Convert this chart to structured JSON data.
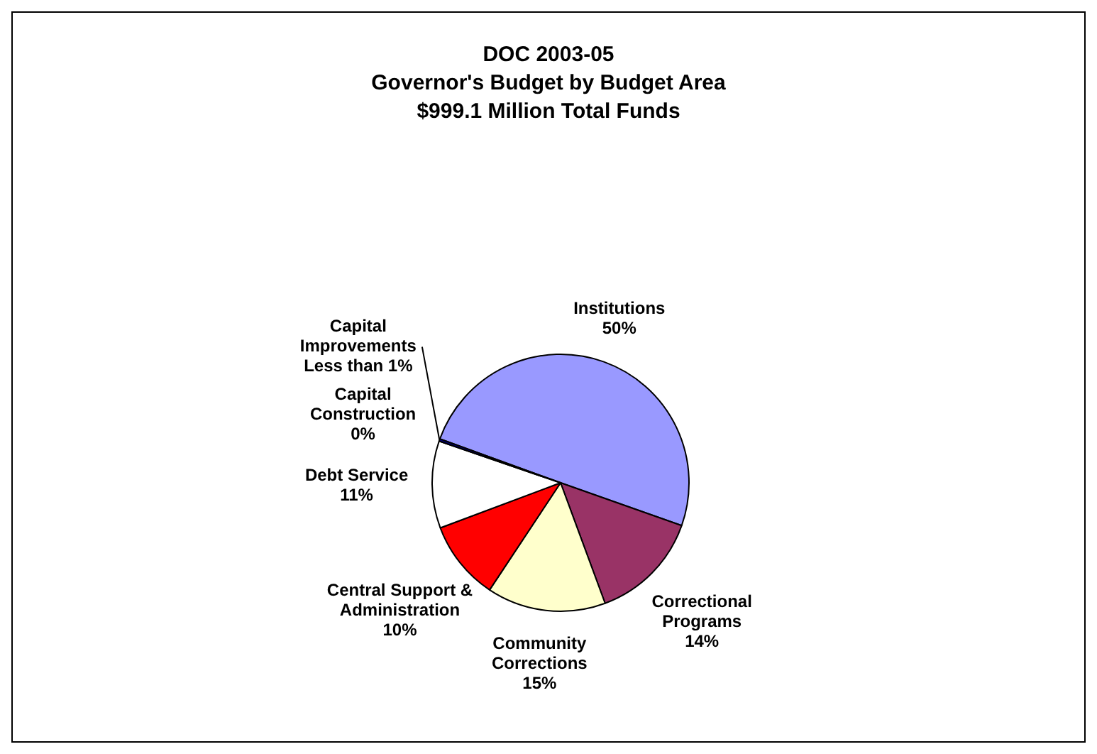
{
  "chart_data": {
    "type": "pie",
    "title": "DOC 2003-05\nGovernor's Budget by Budget Area",
    "subtitle": "$999.1 Million Total Funds",
    "categories": [
      "Institutions",
      "Correctional Programs",
      "Community Corrections",
      "Central Support & Administration",
      "Debt Service",
      "Capital Construction",
      "Capital Improvements"
    ],
    "values": [
      50,
      14,
      15,
      10,
      11,
      0,
      0.3
    ],
    "value_labels": [
      "50%",
      "14%",
      "15%",
      "10%",
      "11%",
      "0%",
      "Less than 1%"
    ],
    "colors": [
      "#9999ff",
      "#993366",
      "#ffffcc",
      "#ff0000",
      "#ffffff",
      "#000080",
      "#000080"
    ],
    "legend": false
  }
}
